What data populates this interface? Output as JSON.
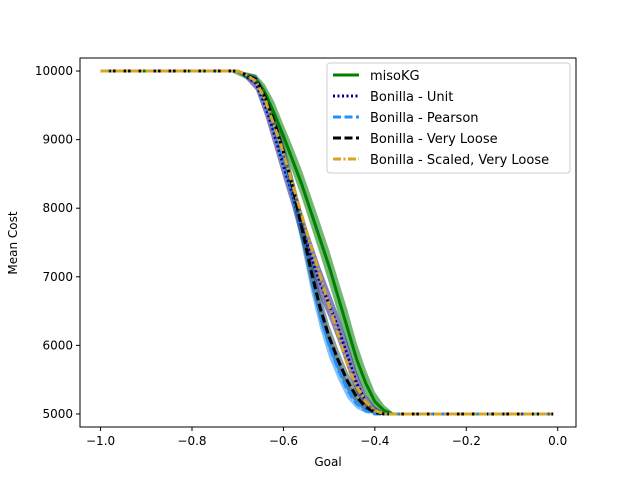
{
  "chart_data": {
    "type": "line",
    "title": "",
    "xlabel": "Goal",
    "ylabel": "Mean Cost",
    "xlim": [
      -1.045,
      0.04
    ],
    "ylim": [
      4810,
      10190
    ],
    "xticks": [
      -1.0,
      -0.8,
      -0.6,
      -0.4,
      -0.2,
      0.0
    ],
    "xtick_labels": [
      "−1.0",
      "−0.8",
      "−0.6",
      "−0.4",
      "−0.2",
      "0.0"
    ],
    "yticks": [
      5000,
      6000,
      7000,
      8000,
      9000,
      10000
    ],
    "ytick_labels": [
      "5000",
      "6000",
      "7000",
      "8000",
      "9000",
      "10000"
    ],
    "grid": false,
    "legend_position": "top-right",
    "series": [
      {
        "name": "misoKG",
        "color": "#008000",
        "dash": "solid",
        "band_color": "#008000",
        "points": [
          [
            -1.0,
            10000
          ],
          [
            -0.7,
            10000
          ],
          [
            -0.68,
            9920
          ],
          [
            -0.66,
            9870
          ],
          [
            -0.64,
            9680
          ],
          [
            -0.62,
            9380
          ],
          [
            -0.6,
            9050
          ],
          [
            -0.58,
            8700
          ],
          [
            -0.56,
            8350
          ],
          [
            -0.54,
            7950
          ],
          [
            -0.52,
            7550
          ],
          [
            -0.5,
            7150
          ],
          [
            -0.48,
            6700
          ],
          [
            -0.46,
            6250
          ],
          [
            -0.44,
            5800
          ],
          [
            -0.42,
            5450
          ],
          [
            -0.4,
            5180
          ],
          [
            -0.38,
            5050
          ],
          [
            -0.36,
            5000
          ],
          [
            -0.01,
            5000
          ]
        ],
        "band": [
          [
            -0.72,
            10000,
            10000
          ],
          [
            -0.68,
            9880,
            9980
          ],
          [
            -0.66,
            9800,
            9950
          ],
          [
            -0.64,
            9550,
            9800
          ],
          [
            -0.62,
            9220,
            9550
          ],
          [
            -0.6,
            8880,
            9220
          ],
          [
            -0.58,
            8520,
            8900
          ],
          [
            -0.56,
            8150,
            8560
          ],
          [
            -0.54,
            7740,
            8180
          ],
          [
            -0.52,
            7330,
            7790
          ],
          [
            -0.5,
            6900,
            7390
          ],
          [
            -0.48,
            6450,
            6950
          ],
          [
            -0.46,
            6000,
            6520
          ],
          [
            -0.44,
            5580,
            6040
          ],
          [
            -0.42,
            5270,
            5650
          ],
          [
            -0.4,
            5080,
            5320
          ],
          [
            -0.38,
            5010,
            5130
          ],
          [
            -0.36,
            5000,
            5020
          ]
        ]
      },
      {
        "name": "Bonilla - Unit",
        "color": "#00008b",
        "dash": "dotted",
        "band_color": "#1a1a8b",
        "points": [
          [
            -1.0,
            10000
          ],
          [
            -0.7,
            10000
          ],
          [
            -0.68,
            9920
          ],
          [
            -0.66,
            9820
          ],
          [
            -0.64,
            9500
          ],
          [
            -0.62,
            9080
          ],
          [
            -0.6,
            8620
          ],
          [
            -0.58,
            8200
          ],
          [
            -0.56,
            7720
          ],
          [
            -0.54,
            7300
          ],
          [
            -0.52,
            6920
          ],
          [
            -0.5,
            6600
          ],
          [
            -0.48,
            6250
          ],
          [
            -0.46,
            5850
          ],
          [
            -0.44,
            5450
          ],
          [
            -0.42,
            5180
          ],
          [
            -0.4,
            5050
          ],
          [
            -0.38,
            5000
          ],
          [
            -0.01,
            5000
          ]
        ],
        "band": [
          [
            -0.7,
            10000,
            10000
          ],
          [
            -0.68,
            9870,
            9960
          ],
          [
            -0.66,
            9720,
            9900
          ],
          [
            -0.64,
            9350,
            9660
          ],
          [
            -0.62,
            8900,
            9260
          ],
          [
            -0.6,
            8440,
            8820
          ],
          [
            -0.58,
            8000,
            8420
          ],
          [
            -0.56,
            7500,
            7950
          ],
          [
            -0.54,
            7080,
            7540
          ],
          [
            -0.52,
            6700,
            7150
          ],
          [
            -0.5,
            6400,
            6800
          ],
          [
            -0.48,
            6050,
            6450
          ],
          [
            -0.46,
            5660,
            6050
          ],
          [
            -0.44,
            5300,
            5620
          ],
          [
            -0.42,
            5100,
            5280
          ],
          [
            -0.4,
            5010,
            5110
          ],
          [
            -0.38,
            5000,
            5020
          ]
        ]
      },
      {
        "name": "Bonilla - Pearson",
        "color": "#1e90ff",
        "dash": "dashed",
        "band_color": "#1e90ff",
        "points": [
          [
            -1.0,
            10000
          ],
          [
            -0.7,
            10000
          ],
          [
            -0.66,
            9870
          ],
          [
            -0.64,
            9600
          ],
          [
            -0.62,
            9200
          ],
          [
            -0.6,
            8750
          ],
          [
            -0.58,
            8250
          ],
          [
            -0.56,
            7700
          ],
          [
            -0.54,
            7050
          ],
          [
            -0.52,
            6450
          ],
          [
            -0.5,
            6000
          ],
          [
            -0.48,
            5650
          ],
          [
            -0.46,
            5350
          ],
          [
            -0.44,
            5150
          ],
          [
            -0.42,
            5050
          ],
          [
            -0.4,
            5000
          ],
          [
            -0.01,
            5000
          ]
        ],
        "band": [
          [
            -0.7,
            10000,
            10000
          ],
          [
            -0.66,
            9800,
            9930
          ],
          [
            -0.64,
            9470,
            9720
          ],
          [
            -0.62,
            9050,
            9360
          ],
          [
            -0.6,
            8580,
            8920
          ],
          [
            -0.58,
            8060,
            8450
          ],
          [
            -0.56,
            7450,
            7930
          ],
          [
            -0.54,
            6800,
            7300
          ],
          [
            -0.52,
            6250,
            6680
          ],
          [
            -0.5,
            5820,
            6200
          ],
          [
            -0.48,
            5500,
            5820
          ],
          [
            -0.46,
            5230,
            5480
          ],
          [
            -0.44,
            5080,
            5240
          ],
          [
            -0.42,
            5010,
            5100
          ],
          [
            -0.4,
            5000,
            5020
          ]
        ]
      },
      {
        "name": "Bonilla - Very Loose",
        "color": "#000000",
        "dash": "dashed",
        "band_color": "#2f4f4f",
        "points": [
          [
            -1.0,
            10000
          ],
          [
            -0.7,
            10000
          ],
          [
            -0.66,
            9880
          ],
          [
            -0.64,
            9620
          ],
          [
            -0.62,
            9260
          ],
          [
            -0.6,
            8820
          ],
          [
            -0.58,
            8300
          ],
          [
            -0.56,
            7720
          ],
          [
            -0.54,
            7100
          ],
          [
            -0.52,
            6550
          ],
          [
            -0.5,
            6120
          ],
          [
            -0.48,
            5780
          ],
          [
            -0.46,
            5480
          ],
          [
            -0.44,
            5250
          ],
          [
            -0.42,
            5100
          ],
          [
            -0.4,
            5020
          ],
          [
            -0.38,
            5000
          ],
          [
            -0.01,
            5000
          ]
        ],
        "band": [
          [
            -0.7,
            10000,
            10000
          ],
          [
            -0.66,
            9820,
            9940
          ],
          [
            -0.64,
            9500,
            9730
          ],
          [
            -0.62,
            9100,
            9400
          ],
          [
            -0.6,
            8650,
            8980
          ],
          [
            -0.58,
            8100,
            8480
          ],
          [
            -0.56,
            7500,
            7940
          ],
          [
            -0.54,
            6880,
            7320
          ],
          [
            -0.52,
            6350,
            6760
          ],
          [
            -0.5,
            5950,
            6300
          ],
          [
            -0.48,
            5620,
            5940
          ],
          [
            -0.46,
            5340,
            5620
          ],
          [
            -0.44,
            5150,
            5360
          ],
          [
            -0.42,
            5040,
            5170
          ],
          [
            -0.4,
            5000,
            5060
          ],
          [
            -0.38,
            5000,
            5010
          ]
        ]
      },
      {
        "name": "Bonilla - Scaled, Very Loose",
        "color": "#daa520",
        "dash": "dashdot",
        "band_color": "#daa520",
        "points": [
          [
            -1.0,
            10000
          ],
          [
            -0.7,
            10000
          ],
          [
            -0.68,
            9940
          ],
          [
            -0.66,
            9850
          ],
          [
            -0.64,
            9580
          ],
          [
            -0.62,
            9200
          ],
          [
            -0.6,
            8800
          ],
          [
            -0.58,
            8350
          ],
          [
            -0.56,
            7900
          ],
          [
            -0.54,
            7450
          ],
          [
            -0.52,
            7020
          ],
          [
            -0.5,
            6580
          ],
          [
            -0.48,
            6150
          ],
          [
            -0.46,
            5720
          ],
          [
            -0.44,
            5400
          ],
          [
            -0.42,
            5180
          ],
          [
            -0.4,
            5050
          ],
          [
            -0.38,
            5000
          ],
          [
            -0.01,
            5000
          ]
        ],
        "band": []
      }
    ]
  }
}
